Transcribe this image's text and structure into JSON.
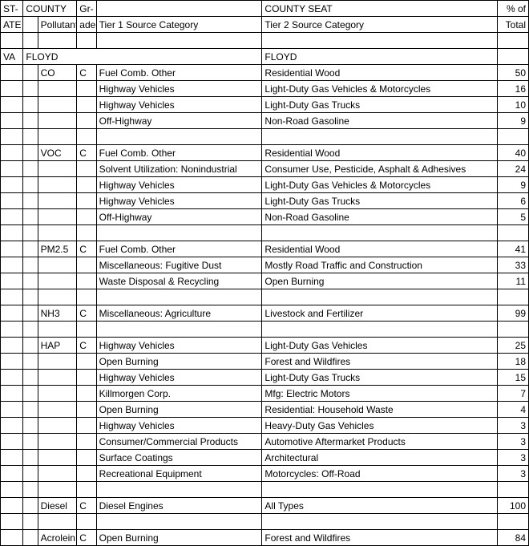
{
  "headers": {
    "state1": "ST-",
    "state2": "ATE",
    "county": "COUNTY",
    "pollutant": "Pollutant",
    "grade1": "Gr-",
    "grade2": "ade",
    "tier1": "Tier 1 Source Category",
    "county_seat": "COUNTY SEAT",
    "tier2": "Tier 2 Source Category",
    "pct1": "% of",
    "pct2": "Total"
  },
  "rows": [
    {
      "type": "blank"
    },
    {
      "type": "group",
      "state": "VA",
      "county": "FLOYD",
      "seat": "FLOYD"
    },
    {
      "type": "data",
      "pollutant": "CO",
      "grade": "C",
      "tier1": "Fuel Comb. Other",
      "tier2": "Residential Wood",
      "pct": "50"
    },
    {
      "type": "data",
      "pollutant": "",
      "grade": "",
      "tier1": "Highway Vehicles",
      "tier2": "Light-Duty Gas Vehicles & Motorcycles",
      "pct": "16"
    },
    {
      "type": "data",
      "pollutant": "",
      "grade": "",
      "tier1": "Highway Vehicles",
      "tier2": "Light-Duty Gas Trucks",
      "pct": "10"
    },
    {
      "type": "data",
      "pollutant": "",
      "grade": "",
      "tier1": "Off-Highway",
      "tier2": "Non-Road Gasoline",
      "pct": "9"
    },
    {
      "type": "blank"
    },
    {
      "type": "data",
      "pollutant": "VOC",
      "grade": "C",
      "tier1": "Fuel Comb. Other",
      "tier2": "Residential Wood",
      "pct": "40"
    },
    {
      "type": "data",
      "pollutant": "",
      "grade": "",
      "tier1": "Solvent Utilization: Nonindustrial",
      "tier2": "Consumer Use, Pesticide, Asphalt & Adhesives",
      "pct": "24"
    },
    {
      "type": "data",
      "pollutant": "",
      "grade": "",
      "tier1": "Highway Vehicles",
      "tier2": "Light-Duty Gas Vehicles & Motorcycles",
      "pct": "9"
    },
    {
      "type": "data",
      "pollutant": "",
      "grade": "",
      "tier1": "Highway Vehicles",
      "tier2": "Light-Duty Gas Trucks",
      "pct": "6"
    },
    {
      "type": "data",
      "pollutant": "",
      "grade": "",
      "tier1": "Off-Highway",
      "tier2": "Non-Road Gasoline",
      "pct": "5"
    },
    {
      "type": "blank"
    },
    {
      "type": "data",
      "pollutant": "PM2.5",
      "grade": "C",
      "tier1": "Fuel Comb. Other",
      "tier2": "Residential Wood",
      "pct": "41"
    },
    {
      "type": "data",
      "pollutant": "",
      "grade": "",
      "tier1": "Miscellaneous: Fugitive Dust",
      "tier2": "Mostly Road Traffic and Construction",
      "pct": "33"
    },
    {
      "type": "data",
      "pollutant": "",
      "grade": "",
      "tier1": "Waste Disposal & Recycling",
      "tier2": "Open Burning",
      "pct": "11"
    },
    {
      "type": "blank"
    },
    {
      "type": "data",
      "pollutant": "NH3",
      "grade": "C",
      "tier1": "Miscellaneous: Agriculture",
      "tier2": "Livestock and Fertilizer",
      "pct": "99"
    },
    {
      "type": "blank"
    },
    {
      "type": "data",
      "pollutant": "HAP",
      "grade": "C",
      "tier1": "Highway Vehicles",
      "tier2": "Light-Duty Gas Vehicles",
      "pct": "25"
    },
    {
      "type": "data",
      "pollutant": "",
      "grade": "",
      "tier1": "Open Burning",
      "tier2": "Forest and Wildfires",
      "pct": "18"
    },
    {
      "type": "data",
      "pollutant": "",
      "grade": "",
      "tier1": "Highway Vehicles",
      "tier2": "Light-Duty Gas Trucks",
      "pct": "15"
    },
    {
      "type": "data",
      "pollutant": "",
      "grade": "",
      "tier1": "Killmorgen Corp.",
      "tier2": "Mfg: Electric Motors",
      "pct": "7"
    },
    {
      "type": "data",
      "pollutant": "",
      "grade": "",
      "tier1": "Open Burning",
      "tier2": "Residential: Household Waste",
      "pct": "4"
    },
    {
      "type": "data",
      "pollutant": "",
      "grade": "",
      "tier1": "Highway Vehicles",
      "tier2": "Heavy-Duty Gas Vehicles",
      "pct": "3"
    },
    {
      "type": "data",
      "pollutant": "",
      "grade": "",
      "tier1": "Consumer/Commercial Products",
      "tier2": "Automotive Aftermarket Products",
      "pct": "3"
    },
    {
      "type": "data",
      "pollutant": "",
      "grade": "",
      "tier1": "Surface Coatings",
      "tier2": "Architectural",
      "pct": "3"
    },
    {
      "type": "data",
      "pollutant": "",
      "grade": "",
      "tier1": "Recreational Equipment",
      "tier2": "Motorcycles: Off-Road",
      "pct": "3"
    },
    {
      "type": "blank"
    },
    {
      "type": "data",
      "pollutant": "Diesel",
      "grade": "C",
      "tier1": "Diesel Engines",
      "tier2": "All Types",
      "pct": "100"
    },
    {
      "type": "blank"
    },
    {
      "type": "data",
      "pollutant": "Acrolein",
      "grade": "C",
      "tier1": "Open Burning",
      "tier2": "Forest and Wildfires",
      "pct": "84"
    }
  ]
}
